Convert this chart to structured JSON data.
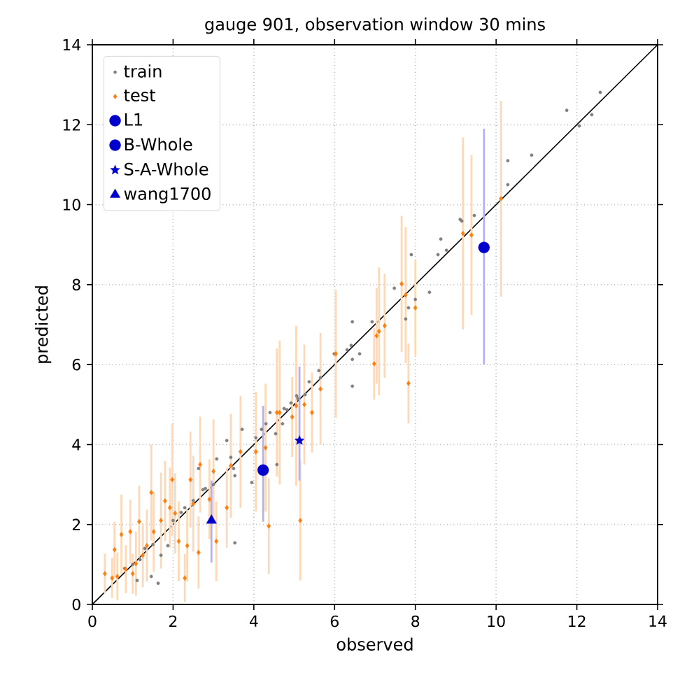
{
  "chart_data": {
    "type": "scatter",
    "title": "gauge 901, observation window 30 mins",
    "xlabel": "observed",
    "ylabel": "predicted",
    "xlim": [
      0,
      14
    ],
    "ylim": [
      0,
      14
    ],
    "xticks": [
      0,
      2,
      4,
      6,
      8,
      10,
      12,
      14
    ],
    "yticks": [
      0,
      2,
      4,
      6,
      8,
      10,
      12,
      14
    ],
    "grid": true,
    "legend": "top left",
    "series": [
      {
        "type": "line",
        "color": "#000000",
        "marker": "none",
        "x": [
          0,
          14
        ],
        "values": [
          0,
          14
        ]
      },
      {
        "name": "train",
        "color": "#808080",
        "marker": "circle",
        "x": [
          12.58,
          12.37,
          11.75,
          12.06,
          10.88,
          10.29,
          10.29,
          9.46,
          9.15,
          9.11,
          8.63,
          8.77,
          8.56,
          7.9,
          7.48,
          8.35,
          8.0,
          7.83,
          7.76,
          6.93,
          6.44,
          6.41,
          6.31,
          6.44,
          6.62,
          5.99,
          6.44,
          5.61,
          5.65,
          5.37,
          5.27,
          5.09,
          4.92,
          4.75,
          4.4,
          4.71,
          4.54,
          4.19,
          3.53,
          4.05,
          4.57,
          3.95,
          3.43,
          2.74,
          2.29,
          1.63,
          1.46,
          1.11,
          1.87,
          1.7,
          3.08,
          3.33,
          3.71,
          4.3,
          4.82,
          5.06,
          3.53,
          2.63,
          1.18,
          1.5,
          2.0,
          2.5,
          3.0,
          3.5,
          0.8,
          1.0,
          1.3,
          2.2,
          2.8
        ],
        "values": [
          12.81,
          12.25,
          12.36,
          11.97,
          11.24,
          11.1,
          10.5,
          9.73,
          9.59,
          9.63,
          9.14,
          8.86,
          8.75,
          8.75,
          7.91,
          7.81,
          7.63,
          7.42,
          7.14,
          7.07,
          7.07,
          6.48,
          6.37,
          6.13,
          6.27,
          6.27,
          5.46,
          5.85,
          5.67,
          5.57,
          5.25,
          5.15,
          5.04,
          4.9,
          4.8,
          4.52,
          4.27,
          4.38,
          1.54,
          4.17,
          3.5,
          3.05,
          3.68,
          2.87,
          2.42,
          0.53,
          0.7,
          0.6,
          1.47,
          1.23,
          3.64,
          4.1,
          4.38,
          4.52,
          4.87,
          5.22,
          3.22,
          3.4,
          1.12,
          1.5,
          2.1,
          2.6,
          3.0,
          3.4,
          0.9,
          1.0,
          1.4,
          2.3,
          2.9
        ]
      },
      {
        "name": "test",
        "color": "#ff7f0e",
        "marker": "diamond",
        "x": [
          10.12,
          9.39,
          9.18,
          7.66,
          7.76,
          8.0,
          7.1,
          7.04,
          7.24,
          6.98,
          7.83,
          6.03,
          5.65,
          5.25,
          5.44,
          4.95,
          4.57,
          0.31,
          0.49,
          0.62,
          0.83,
          1.0,
          1.08,
          0.55,
          0.72,
          1.25,
          1.35,
          1.52,
          1.7,
          1.92,
          1.98,
          2.29,
          2.14,
          2.35,
          2.5,
          2.43,
          2.67,
          2.63,
          3.07,
          3.0,
          2.9,
          3.33,
          3.43,
          3.67,
          4.05,
          4.29,
          4.37,
          4.64,
          5.15,
          5.05,
          1.46,
          1.8,
          2.05,
          1.16,
          0.94
        ],
        "values": [
          10.15,
          9.24,
          9.28,
          8.02,
          7.74,
          7.42,
          6.83,
          6.72,
          6.97,
          6.02,
          5.53,
          6.27,
          5.39,
          5.0,
          4.8,
          4.69,
          4.8,
          0.77,
          0.66,
          0.7,
          0.88,
          0.77,
          1.02,
          1.37,
          1.75,
          1.23,
          1.47,
          1.82,
          2.1,
          2.42,
          3.12,
          0.66,
          1.58,
          1.47,
          2.52,
          3.12,
          3.5,
          1.3,
          1.58,
          3.33,
          2.63,
          2.42,
          3.47,
          3.82,
          3.82,
          3.92,
          1.96,
          4.8,
          2.1,
          4.97,
          2.8,
          2.59,
          2.28,
          2.07,
          1.82
        ],
        "errors": [
          2.45,
          2.0,
          2.4,
          1.7,
          1.7,
          1.2,
          1.6,
          1.2,
          1.3,
          0.9,
          1.0,
          1.6,
          1.4,
          1.5,
          1.0,
          1.0,
          1.6,
          0.5,
          0.5,
          0.6,
          0.6,
          0.5,
          0.8,
          0.7,
          1.0,
          0.8,
          0.9,
          1.0,
          1.2,
          1.0,
          1.4,
          0.6,
          1.0,
          0.9,
          1.2,
          1.2,
          1.2,
          0.9,
          1.0,
          1.3,
          1.0,
          1.0,
          1.3,
          1.4,
          1.5,
          1.6,
          1.2,
          1.8,
          1.5,
          2.0,
          1.2,
          1.0,
          1.0,
          0.9,
          0.8
        ]
      },
      {
        "name": "L1",
        "color": "#0000cc",
        "marker": "circle",
        "x": [
          9.7
        ],
        "values": [
          8.93
        ],
        "errors": [
          [
            6.0,
            11.9
          ]
        ]
      },
      {
        "name": "B-Whole",
        "color": "#0000cc",
        "marker": "circle",
        "x": [
          4.23
        ],
        "values": [
          3.36
        ],
        "errors": [
          [
            2.07,
            4.97
          ]
        ]
      },
      {
        "name": "S-A-Whole",
        "color": "#0000cc",
        "marker": "star",
        "x": [
          5.13
        ],
        "values": [
          4.1
        ],
        "errors": [
          [
            3.1,
            5.95
          ]
        ]
      },
      {
        "name": "wang1700",
        "color": "#0000cc",
        "marker": "triangle",
        "x": [
          2.95
        ],
        "values": [
          2.1
        ],
        "errors": [
          [
            1.05,
            3.1
          ]
        ]
      }
    ]
  }
}
